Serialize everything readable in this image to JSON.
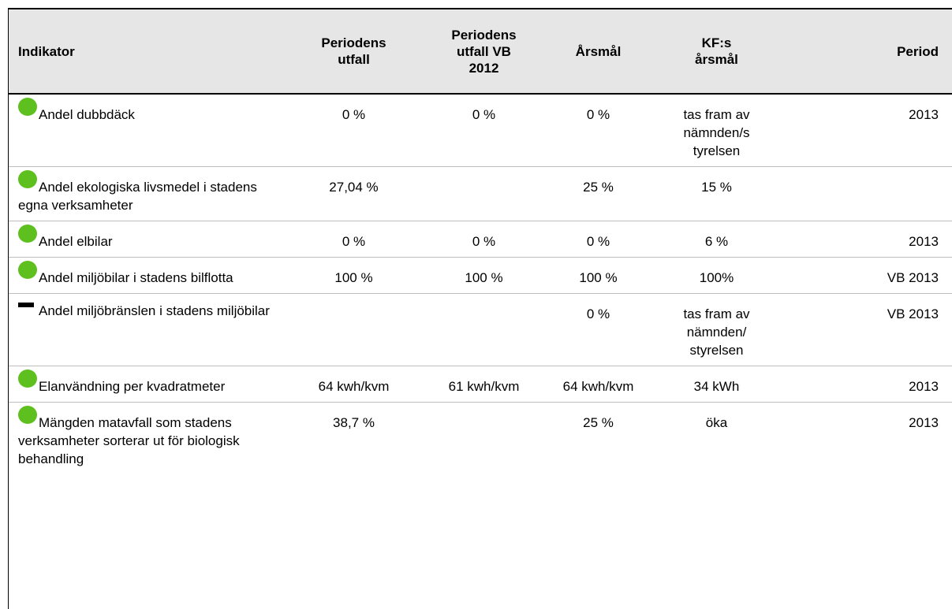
{
  "table": {
    "header": [
      "Indikator",
      "Periodens utfall",
      "Periodens utfall VB 2012",
      "Årsmål",
      "KF:s årsmål",
      "Period"
    ],
    "rows": [
      [
        "Andel dubbdäck",
        "0 %",
        "0 %",
        "0 %",
        "tas fram av nämnden/s tyrelsen",
        "2013"
      ],
      [
        "Andel ekologiska livsmedel i stadens egna verksamheter",
        "27,04 %",
        null,
        "25 %",
        "15 %",
        null
      ],
      [
        "Andel elbilar",
        "0 %",
        "0 %",
        "0 %",
        "6 %",
        "2013"
      ],
      [
        "Andel miljöbilar i stadens bilflotta",
        "100 %",
        "100 %",
        "100 %",
        "100%",
        "VB 2013"
      ],
      [
        "Andel miljöbränslen i stadens miljöbilar",
        null,
        null,
        "0 %",
        "tas fram av nämnden/ styrelsen",
        "VB 2013"
      ],
      [
        "Elanvändning per kvadratmeter",
        "64 kwh/kvm",
        "61 kwh/kvm",
        "64 kwh/kvm",
        "34 kWh",
        "2013"
      ],
      [
        "Mängden matavfall som stadens verksamheter sorterar ut för biologisk behandling",
        "38,7 %",
        null,
        "25 %",
        "öka",
        "2013"
      ]
    ]
  }
}
